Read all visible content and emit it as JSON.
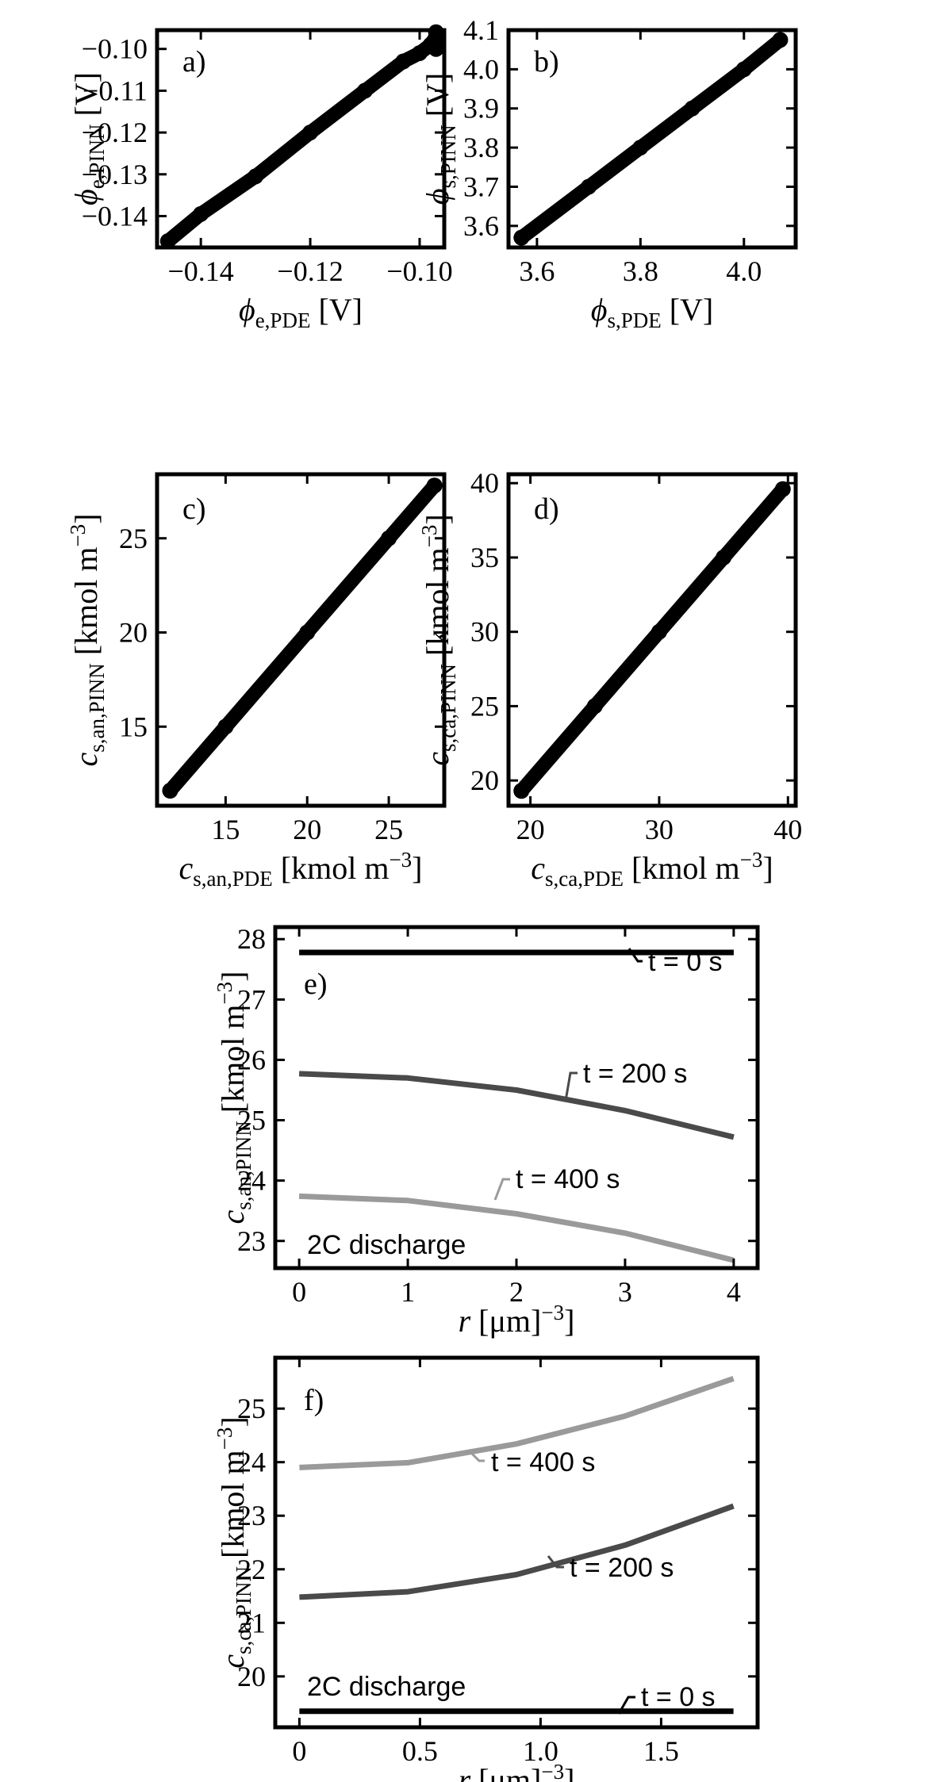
{
  "figure": {
    "panels": [
      {
        "id": "a",
        "label": "a)",
        "xlabel_base": "ϕ",
        "xlabel_sub": "e,PDE",
        "xlabel_unit": " [V]",
        "ylabel_base": "ϕ",
        "ylabel_sub": "e,PINN",
        "ylabel_unit": " [V]",
        "xticks": [
          "−0.14",
          "−0.12",
          "−0.10"
        ],
        "yticks": [
          "−0.10",
          "−0.11",
          "−0.12",
          "−0.13",
          "−0.14"
        ]
      },
      {
        "id": "b",
        "label": "b)",
        "xlabel_base": "ϕ",
        "xlabel_sub": "s,PDE",
        "xlabel_unit": " [V]",
        "ylabel_base": "ϕ",
        "ylabel_sub": "s,PINN",
        "ylabel_unit": " [V]",
        "xticks": [
          "3.6",
          "3.8",
          "4.0"
        ],
        "yticks": [
          "4.1",
          "4.0",
          "3.9",
          "3.8",
          "3.7",
          "3.6"
        ]
      },
      {
        "id": "c",
        "label": "c)",
        "xlabel_base": "c",
        "xlabel_sub": "s,an,PDE",
        "xlabel_unit": " [kmol m",
        "ylabel_base": "c",
        "ylabel_sub": "s,an,PINN",
        "ylabel_unit": " [kmol m",
        "unit_exp": "−3",
        "unit_close": "]",
        "xticks": [
          "15",
          "20",
          "25"
        ],
        "yticks": [
          "25",
          "20",
          "15"
        ]
      },
      {
        "id": "d",
        "label": "d)",
        "xlabel_base": "c",
        "xlabel_sub": "s,ca,PDE",
        "xlabel_unit": " [kmol m",
        "ylabel_base": "c",
        "ylabel_sub": "s,ca,PINN",
        "ylabel_unit": " [kmol m",
        "unit_exp": "−3",
        "unit_close": "]",
        "xticks": [
          "20",
          "30",
          "40"
        ],
        "yticks": [
          "40",
          "35",
          "30",
          "25",
          "20"
        ]
      },
      {
        "id": "e",
        "label": "e)",
        "xlabel_base": "r",
        "xlabel_unit": " [μm]",
        "ylabel_base": "c",
        "ylabel_sub": "s,an,PINN",
        "ylabel_unit": " [kmol m",
        "unit_exp": "−3",
        "unit_close": "]",
        "xticks": [
          "0",
          "1",
          "2",
          "3",
          "4"
        ],
        "yticks": [
          "28",
          "27",
          "26",
          "25",
          "24",
          "23"
        ],
        "note": "2C discharge",
        "curve_labels": [
          "t = 0 s",
          "t = 200 s",
          "t = 400 s"
        ]
      },
      {
        "id": "f",
        "label": "f)",
        "xlabel_base": "r",
        "xlabel_unit": " [μm]",
        "ylabel_base": "c",
        "ylabel_sub": "s,ca,PINN",
        "ylabel_unit": " [kmol m",
        "unit_exp": "−3",
        "unit_close": "]",
        "xticks": [
          "0",
          "0.5",
          "1.0",
          "1.5"
        ],
        "yticks": [
          "25",
          "24",
          "23",
          "22",
          "21",
          "20"
        ],
        "note": "2C discharge",
        "curve_labels": [
          "t = 400 s",
          "t = 200 s",
          "t = 0 s"
        ]
      }
    ]
  },
  "chart_data": [
    {
      "type": "scatter",
      "panel": "a",
      "xlim": [
        -0.148,
        -0.0955
      ],
      "ylim": [
        -0.1475,
        -0.0955
      ],
      "xticks": [
        -0.14,
        -0.12,
        -0.1
      ],
      "yticks": [
        -0.1,
        -0.11,
        -0.12,
        -0.13,
        -0.14
      ],
      "series": [
        {
          "color": "#000000",
          "x": [
            -0.146,
            -0.14,
            -0.13,
            -0.12,
            -0.11,
            -0.103,
            -0.1,
            -0.098,
            -0.097,
            -0.097,
            -0.097
          ],
          "y": [
            -0.146,
            -0.1395,
            -0.1305,
            -0.12,
            -0.11,
            -0.103,
            -0.101,
            -0.099,
            -0.097,
            -0.1,
            -0.096
          ]
        }
      ]
    },
    {
      "type": "scatter",
      "panel": "b",
      "xlim": [
        3.545,
        4.1
      ],
      "ylim": [
        3.545,
        4.1
      ],
      "xticks": [
        3.6,
        3.8,
        4.0
      ],
      "yticks": [
        4.1,
        4.0,
        3.9,
        3.8,
        3.7,
        3.6
      ],
      "series": [
        {
          "color": "#000000",
          "x": [
            3.57,
            3.7,
            3.8,
            3.9,
            4.0,
            4.07
          ],
          "y": [
            3.57,
            3.7,
            3.8,
            3.9,
            4.0,
            4.075
          ]
        }
      ]
    },
    {
      "type": "scatter",
      "panel": "c",
      "xlim": [
        10.8,
        28.4
      ],
      "ylim": [
        10.8,
        28.4
      ],
      "xticks": [
        15,
        20,
        25
      ],
      "yticks": [
        25,
        20,
        15
      ],
      "series": [
        {
          "color": "#000000",
          "x": [
            11.6,
            15,
            20,
            25,
            27.8
          ],
          "y": [
            11.6,
            15,
            20,
            25,
            27.8
          ]
        }
      ]
    },
    {
      "type": "scatter",
      "panel": "d",
      "xlim": [
        18.3,
        40.6
      ],
      "ylim": [
        18.3,
        40.6
      ],
      "xticks": [
        20,
        30,
        40
      ],
      "yticks": [
        40,
        35,
        30,
        25,
        20
      ],
      "series": [
        {
          "color": "#000000",
          "x": [
            19.3,
            25,
            30,
            35,
            39.6
          ],
          "y": [
            19.3,
            25,
            30,
            35,
            39.6
          ]
        }
      ]
    },
    {
      "type": "line",
      "panel": "e",
      "xlim": [
        -0.22,
        4.22
      ],
      "ylim": [
        22.55,
        28.2
      ],
      "xticks": [
        0,
        1,
        2,
        3,
        4
      ],
      "yticks": [
        28,
        27,
        26,
        25,
        24,
        23
      ],
      "xlabel": "r [μm]",
      "series": [
        {
          "name": "t = 0 s",
          "color": "#000000",
          "x": [
            0,
            1,
            2,
            3,
            4
          ],
          "y": [
            27.78,
            27.78,
            27.78,
            27.78,
            27.78
          ]
        },
        {
          "name": "t = 200 s",
          "color": "#4a4a4a",
          "x": [
            0,
            1,
            2,
            3,
            4
          ],
          "y": [
            25.77,
            25.7,
            25.5,
            25.16,
            24.72
          ]
        },
        {
          "name": "t = 400 s",
          "color": "#9a9a9a",
          "x": [
            0,
            1,
            2,
            3,
            4
          ],
          "y": [
            23.74,
            23.67,
            23.45,
            23.13,
            22.68
          ]
        }
      ]
    },
    {
      "type": "line",
      "panel": "f",
      "xlim": [
        -0.1,
        1.9
      ],
      "ylim": [
        19.05,
        25.95
      ],
      "xticks": [
        0,
        0.5,
        1.0,
        1.5
      ],
      "yticks": [
        25,
        24,
        23,
        22,
        21,
        20
      ],
      "xlabel": "r [μm]",
      "series": [
        {
          "name": "t = 400 s",
          "color": "#9a9a9a",
          "x": [
            0,
            0.45,
            0.9,
            1.35,
            1.8
          ],
          "y": [
            23.9,
            23.99,
            24.34,
            24.86,
            25.56
          ]
        },
        {
          "name": "t = 200 s",
          "color": "#4a4a4a",
          "x": [
            0,
            0.45,
            0.9,
            1.35,
            1.8
          ],
          "y": [
            21.48,
            21.58,
            21.9,
            22.45,
            23.18
          ]
        },
        {
          "name": "t = 0 s",
          "color": "#000000",
          "x": [
            0,
            0.45,
            0.9,
            1.35,
            1.8
          ],
          "y": [
            19.35,
            19.35,
            19.35,
            19.35,
            19.35
          ]
        }
      ]
    }
  ]
}
